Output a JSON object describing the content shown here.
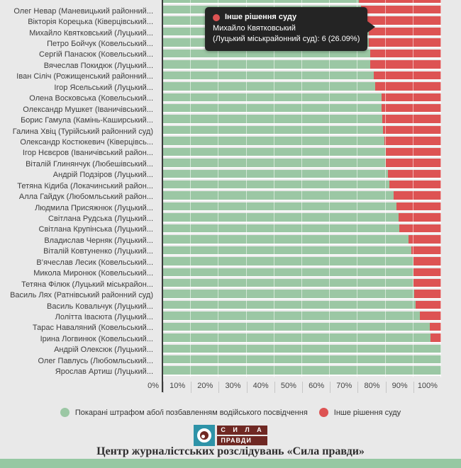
{
  "colors": {
    "green": "#9bc7a4",
    "red": "#dd5353",
    "background": "#e9e9e9",
    "axis": "#3a3a3a",
    "tooltip_bg": "#242424",
    "bottom_strip": "#96c8a2",
    "logo_teal": "#2e93a8",
    "logo_dark_red": "#6f2823"
  },
  "chart_data": {
    "type": "bar",
    "orientation": "horizontal-stacked",
    "unit": "percent",
    "xlim": [
      0,
      100
    ],
    "grid": true,
    "x_ticks": [
      "0%",
      "10%",
      "20%",
      "30%",
      "40%",
      "50%",
      "60%",
      "70%",
      "80%",
      "90%",
      "100%"
    ],
    "series": [
      {
        "name": "Покарані штрафом або/і позбавленням водійського посвідчення",
        "color": "#9bc7a4"
      },
      {
        "name": "Інше рішення суду",
        "color": "#dd5353"
      }
    ],
    "rows": [
      {
        "label": "",
        "partial": true,
        "green": 70.4,
        "red": 29.6
      },
      {
        "label": "Олег Невар (Маневицький районний...",
        "green": 71.3,
        "red": 28.7
      },
      {
        "label": "Вікторія Корецька (Ківерцівський...",
        "green": 72.6,
        "red": 27.4
      },
      {
        "label": "Михайло Квятковський (Луцький...",
        "green": 73.91,
        "red": 26.09
      },
      {
        "label": "Петро Бойчук (Ковельський...",
        "green": 74.0,
        "red": 26.0
      },
      {
        "label": "Сергій Панасюк (Ковельський...",
        "green": 74.5,
        "red": 25.5
      },
      {
        "label": "Вячеслав Покидюк (Луцький...",
        "green": 74.5,
        "red": 25.5
      },
      {
        "label": "Іван Сіліч (Рожищенський районний...",
        "green": 75.8,
        "red": 24.2
      },
      {
        "label": "Ігор Ясельський (Луцький...",
        "green": 76.3,
        "red": 23.7
      },
      {
        "label": "Олена Восковська (Ковельський...",
        "green": 78.5,
        "red": 21.5
      },
      {
        "label": "Олександр Мушкет (Іваничівський...",
        "green": 78.5,
        "red": 21.5
      },
      {
        "label": "Борис Гамула (Камінь-Каширський...",
        "green": 78.8,
        "red": 21.2
      },
      {
        "label": "Галина Хвіц (Турійський районний суд)",
        "green": 79.1,
        "red": 20.9
      },
      {
        "label": "Олександр Костюкевич (Ківерцівсь...",
        "green": 79.5,
        "red": 20.5
      },
      {
        "label": "Ігор Нєвєров (Іваничівський район...",
        "green": 80.1,
        "red": 19.9
      },
      {
        "label": "Віталій Глинянчук (Любешівський...",
        "green": 80.1,
        "red": 19.9
      },
      {
        "label": "Андрій Подзіров (Луцький...",
        "green": 80.9,
        "red": 19.1
      },
      {
        "label": "Тетяна Кідиба (Локачинський район...",
        "green": 81.5,
        "red": 18.5
      },
      {
        "label": "Алла Гайдук (Любомльський район...",
        "green": 82.9,
        "red": 17.1
      },
      {
        "label": "Людмила Присяжнюк (Луцький...",
        "green": 83.9,
        "red": 16.1
      },
      {
        "label": "Світлана Рудська (Луцький...",
        "green": 84.7,
        "red": 15.3
      },
      {
        "label": "Світлана Крупінська (Луцький...",
        "green": 84.9,
        "red": 15.1
      },
      {
        "label": "Владислав Черняк (Луцький...",
        "green": 88.2,
        "red": 11.8
      },
      {
        "label": "Віталій Ковтуненко (Луцький...",
        "green": 89.2,
        "red": 10.8
      },
      {
        "label": "В’ячеслав Лесик (Ковельський...",
        "green": 90.0,
        "red": 10.0
      },
      {
        "label": "Микола Миронюк (Ковельський...",
        "green": 90.0,
        "red": 10.0
      },
      {
        "label": "Тетяна Філюк (Луцький міськрайон...",
        "green": 90.0,
        "red": 10.0
      },
      {
        "label": "Василь Лях (Ратнівський районний суд)",
        "green": 90.2,
        "red": 9.8
      },
      {
        "label": "Василь Ковальчук (Луцький...",
        "green": 90.7,
        "red": 9.3
      },
      {
        "label": "Лолітта Івасюта (Луцький...",
        "green": 92.3,
        "red": 7.7
      },
      {
        "label": "Тарас Наваляний (Ковельський...",
        "green": 95.8,
        "red": 4.2
      },
      {
        "label": "Ірина Логвинюк (Ковельський...",
        "green": 96.3,
        "red": 3.7
      },
      {
        "label": "Андрій Олексюк (Луцький...",
        "green": 100,
        "red": 0
      },
      {
        "label": "Олег Павлусь (Любомльський...",
        "green": 100,
        "red": 0
      },
      {
        "label": "Ярослав Артиш (Луцький...",
        "green": 100,
        "red": 0
      }
    ]
  },
  "tooltip": {
    "title": "Інше рішення суду",
    "line1": "Михайло Квятковський",
    "line2": "(Луцький міськрайонний суд): 6 (26.09%)"
  },
  "legend": {
    "green_label": "Покарані штрафом або/і позбавленням водійського посвідчення",
    "red_label": "Інше рішення суду"
  },
  "logo": {
    "line1": "С И Л А",
    "line2": "ПРАВДИ"
  },
  "footer": "Центр журналістських розслідувань «Сила правди»"
}
